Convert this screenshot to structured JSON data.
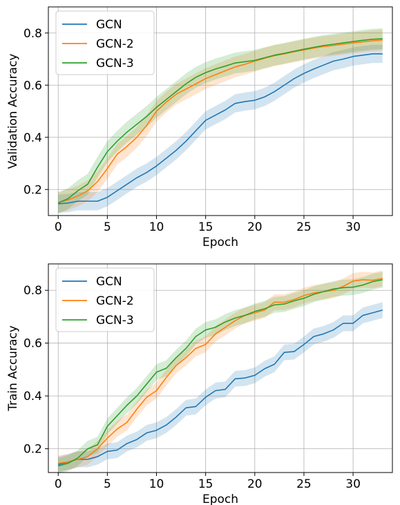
{
  "chart_data": [
    {
      "type": "line",
      "xlabel": "Epoch",
      "ylabel": "Validation Accuracy",
      "xlim": [
        -1,
        34
      ],
      "ylim": [
        0.1,
        0.9
      ],
      "xticks": [
        0,
        5,
        10,
        15,
        20,
        25,
        30
      ],
      "xtick_labels": [
        "0",
        "5",
        "10",
        "15",
        "20",
        "25",
        "30"
      ],
      "yticks": [
        0.2,
        0.4,
        0.6,
        0.8
      ],
      "ytick_labels": [
        "0.2",
        "0.4",
        "0.6",
        "0.8"
      ],
      "grid": true,
      "legend_position": "top-left",
      "x": [
        0,
        1,
        2,
        3,
        4,
        5,
        6,
        7,
        8,
        9,
        10,
        11,
        12,
        13,
        14,
        15,
        16,
        17,
        18,
        19,
        20,
        21,
        22,
        23,
        24,
        25,
        26,
        27,
        28,
        29,
        30,
        31,
        32,
        33
      ],
      "series": [
        {
          "name": "GCN",
          "color": "#1f77b4",
          "values": [
            0.145,
            0.148,
            0.155,
            0.155,
            0.155,
            0.17,
            0.195,
            0.22,
            0.245,
            0.265,
            0.29,
            0.32,
            0.35,
            0.385,
            0.425,
            0.465,
            0.485,
            0.505,
            0.53,
            0.537,
            0.542,
            0.555,
            0.575,
            0.6,
            0.625,
            0.645,
            0.662,
            0.677,
            0.692,
            0.7,
            0.71,
            0.715,
            0.72,
            0.72
          ],
          "band": 0.035
        },
        {
          "name": "GCN-2",
          "color": "#ff7f0e",
          "values": [
            0.15,
            0.16,
            0.175,
            0.195,
            0.23,
            0.28,
            0.335,
            0.365,
            0.4,
            0.445,
            0.5,
            0.535,
            0.565,
            0.585,
            0.605,
            0.625,
            0.64,
            0.655,
            0.67,
            0.68,
            0.692,
            0.703,
            0.713,
            0.72,
            0.728,
            0.735,
            0.742,
            0.748,
            0.752,
            0.757,
            0.762,
            0.766,
            0.77,
            0.773
          ],
          "band": 0.04
        },
        {
          "name": "GCN-3",
          "color": "#2ca02c",
          "values": [
            0.148,
            0.165,
            0.195,
            0.22,
            0.285,
            0.345,
            0.385,
            0.42,
            0.45,
            0.48,
            0.515,
            0.545,
            0.575,
            0.605,
            0.63,
            0.648,
            0.662,
            0.673,
            0.685,
            0.69,
            0.695,
            0.705,
            0.715,
            0.722,
            0.73,
            0.738,
            0.745,
            0.752,
            0.757,
            0.762,
            0.767,
            0.772,
            0.776,
            0.778
          ],
          "band": 0.04
        }
      ]
    },
    {
      "type": "line",
      "xlabel": "Epoch",
      "ylabel": "Train Accuracy",
      "xlim": [
        -1,
        34
      ],
      "ylim": [
        0.11,
        0.9
      ],
      "xticks": [
        0,
        5,
        10,
        15,
        20,
        25,
        30
      ],
      "xtick_labels": [
        "0",
        "5",
        "10",
        "15",
        "20",
        "25",
        "30"
      ],
      "yticks": [
        0.2,
        0.4,
        0.6,
        0.8
      ],
      "ytick_labels": [
        "0.2",
        "0.4",
        "0.6",
        "0.8"
      ],
      "grid": true,
      "legend_position": "top-left",
      "x": [
        0,
        1,
        2,
        3,
        4,
        5,
        6,
        7,
        8,
        9,
        10,
        11,
        12,
        13,
        14,
        15,
        16,
        17,
        18,
        19,
        20,
        21,
        22,
        23,
        24,
        25,
        26,
        27,
        28,
        29,
        30,
        31,
        32,
        33
      ],
      "series": [
        {
          "name": "GCN",
          "color": "#1f77b4",
          "values": [
            0.14,
            0.15,
            0.16,
            0.16,
            0.17,
            0.19,
            0.195,
            0.22,
            0.235,
            0.26,
            0.27,
            0.29,
            0.32,
            0.355,
            0.36,
            0.395,
            0.42,
            0.425,
            0.465,
            0.468,
            0.478,
            0.503,
            0.52,
            0.565,
            0.568,
            0.595,
            0.625,
            0.635,
            0.65,
            0.675,
            0.675,
            0.705,
            0.715,
            0.725
          ],
          "band": 0.03
        },
        {
          "name": "GCN-2",
          "color": "#ff7f0e",
          "values": [
            0.145,
            0.15,
            0.16,
            0.17,
            0.2,
            0.24,
            0.275,
            0.3,
            0.35,
            0.395,
            0.42,
            0.47,
            0.515,
            0.545,
            0.58,
            0.595,
            0.635,
            0.66,
            0.685,
            0.705,
            0.715,
            0.725,
            0.755,
            0.755,
            0.765,
            0.78,
            0.79,
            0.795,
            0.8,
            0.815,
            0.835,
            0.84,
            0.838,
            0.845
          ],
          "band": 0.03
        },
        {
          "name": "GCN-3",
          "color": "#2ca02c",
          "values": [
            0.135,
            0.145,
            0.165,
            0.2,
            0.215,
            0.285,
            0.325,
            0.365,
            0.4,
            0.445,
            0.49,
            0.505,
            0.545,
            0.58,
            0.625,
            0.65,
            0.66,
            0.68,
            0.695,
            0.705,
            0.72,
            0.73,
            0.745,
            0.748,
            0.76,
            0.77,
            0.785,
            0.795,
            0.805,
            0.81,
            0.812,
            0.82,
            0.833,
            0.84
          ],
          "band": 0.03
        }
      ]
    }
  ]
}
